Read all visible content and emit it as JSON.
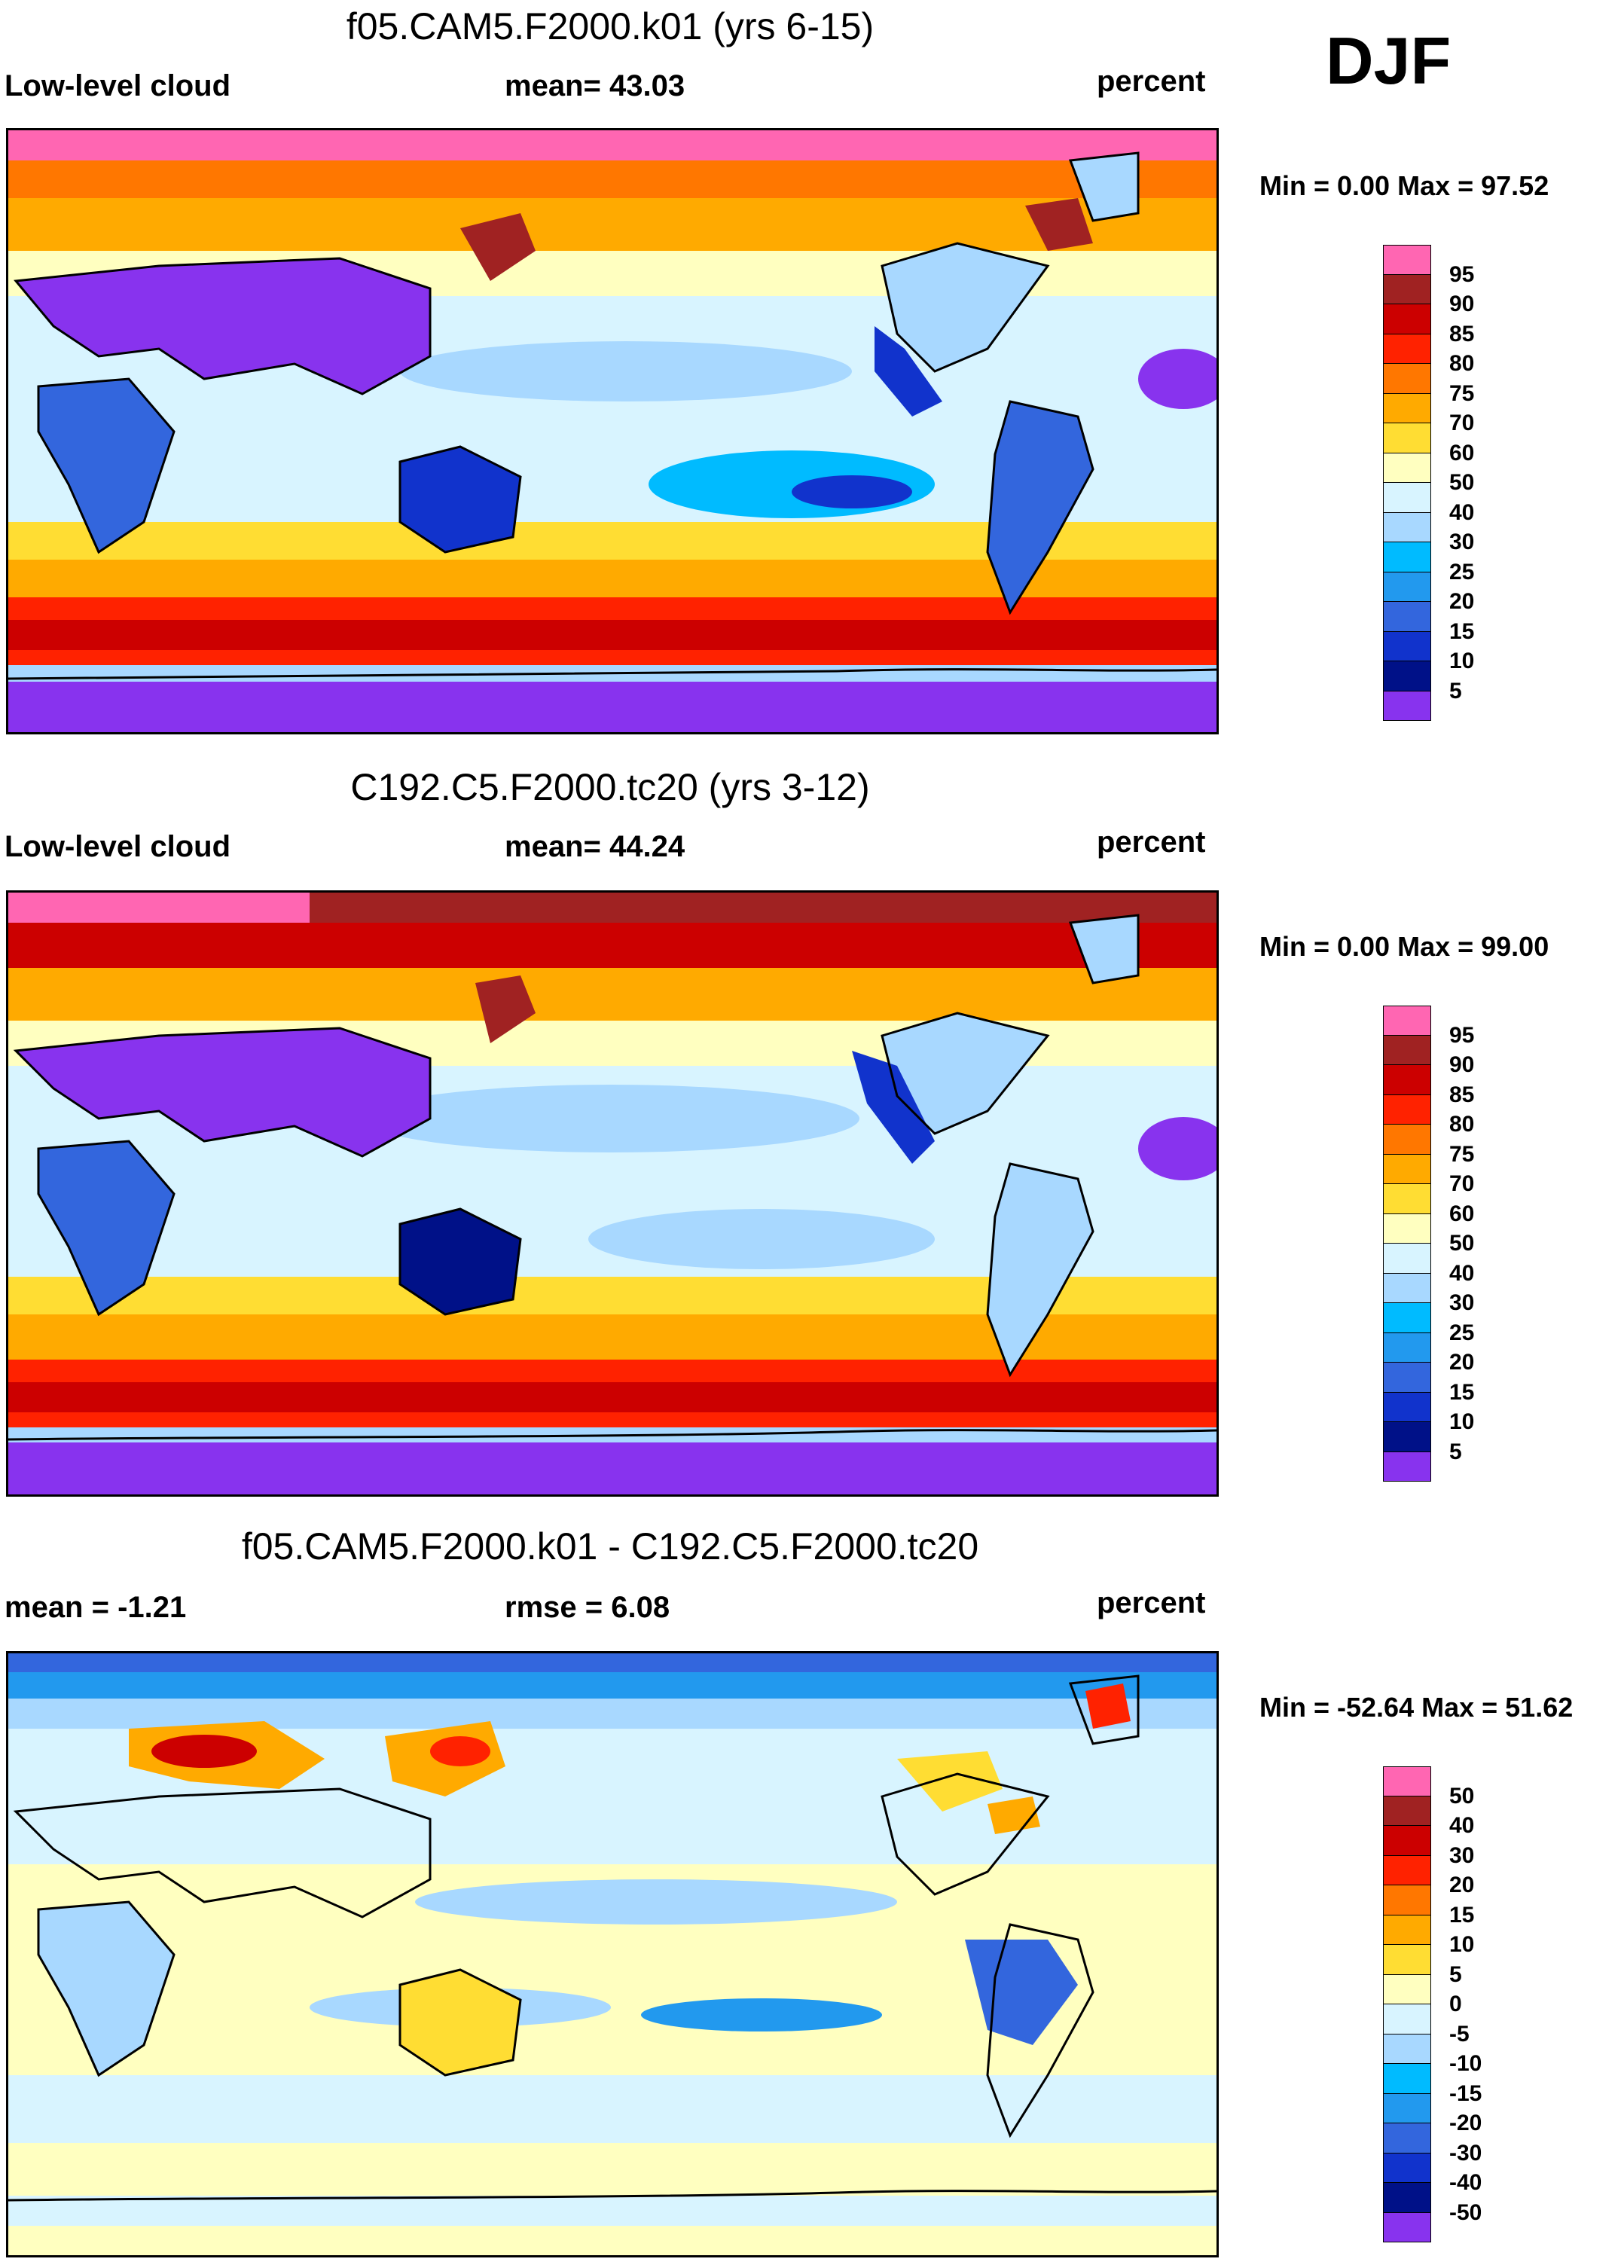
{
  "season": "DJF",
  "panels": [
    {
      "title": "f05.CAM5.F2000.k01 (yrs 6-15)",
      "left_label": "Low-level cloud",
      "center_label": "mean=  43.03",
      "units": "percent",
      "minmax": "Min =   0.00 Max =  97.52"
    },
    {
      "title": "C192.C5.F2000.tc20 (yrs 3-12)",
      "left_label": "Low-level cloud",
      "center_label": "mean=  44.24",
      "units": "percent",
      "minmax": "Min =   0.00 Max =  99.00"
    },
    {
      "title": "f05.CAM5.F2000.k01 - C192.C5.F2000.tc20",
      "left_label": "mean =  -1.21",
      "center_label": "rmse =   6.08",
      "units": "percent",
      "minmax": "Min = -52.64 Max =  51.62"
    }
  ],
  "colorbars": {
    "cloud": {
      "colors": [
        "#ff66b2",
        "#a02222",
        "#cc0000",
        "#ff2200",
        "#ff7700",
        "#ffaa00",
        "#ffdd33",
        "#ffffc0",
        "#d8f4ff",
        "#a8d8ff",
        "#00bbff",
        "#2299ee",
        "#3366dd",
        "#1133cc",
        "#001188",
        "#8833ee"
      ],
      "labels": [
        "95",
        "90",
        "85",
        "80",
        "75",
        "70",
        "60",
        "50",
        "40",
        "30",
        "25",
        "20",
        "15",
        "10",
        "5"
      ]
    },
    "diff": {
      "colors": [
        "#ff66b2",
        "#a02222",
        "#cc0000",
        "#ff2200",
        "#ff7700",
        "#ffaa00",
        "#ffdd33",
        "#ffffc0",
        "#d8f4ff",
        "#a8d8ff",
        "#00bbff",
        "#2299ee",
        "#3366dd",
        "#1133cc",
        "#001188",
        "#8833ee"
      ],
      "labels": [
        "50",
        "40",
        "30",
        "20",
        "15",
        "10",
        "5",
        "0",
        "-5",
        "-10",
        "-15",
        "-20",
        "-30",
        "-40",
        "-50"
      ]
    }
  }
}
